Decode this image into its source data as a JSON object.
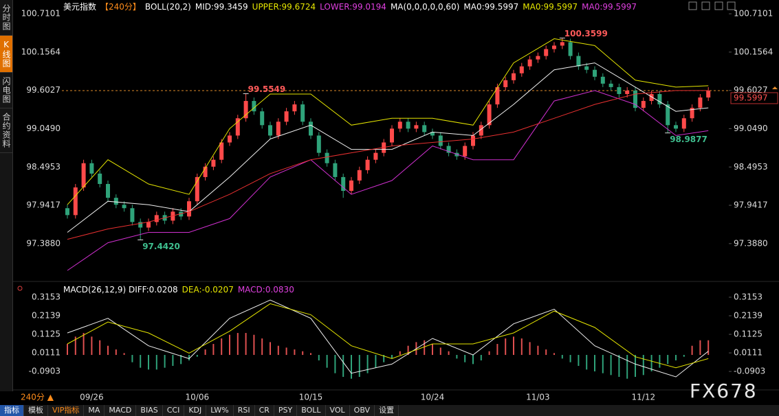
{
  "sidebar": {
    "tabs": [
      "分时图",
      "K线图",
      "闪电图",
      "合约资料"
    ],
    "active": 1
  },
  "toolbar": {
    "items": [
      "指标",
      "模板",
      "VIP指标",
      "MA",
      "MACD",
      "BIAS",
      "CCI",
      "KDJ",
      "LW%",
      "RSI",
      "CR",
      "PSY",
      "BOLL",
      "VOL",
      "OBV",
      "设置"
    ],
    "active": 0,
    "highlight": 2
  },
  "period_button": "240分 ▲",
  "watermark": "FX678",
  "chart_data": [
    {
      "type": "candlestick",
      "header": [
        {
          "text": "美元指数",
          "color": "#ffffff"
        },
        {
          "text": "【240分】",
          "color": "#ff8c1a"
        },
        {
          "text": "BOLL(20,2)",
          "color": "#ffffff"
        },
        {
          "text": "MID:99.3459",
          "color": "#ffffff"
        },
        {
          "text": "UPPER:99.6724",
          "color": "#e6e600"
        },
        {
          "text": "LOWER:99.0194",
          "color": "#e040e0"
        },
        {
          "text": "MA(0,0,0,0,0,60)",
          "color": "#ffffff"
        },
        {
          "text": "MA0:99.5997",
          "color": "#ffffff"
        },
        {
          "text": "MA0:99.5997",
          "color": "#e6e600"
        },
        {
          "text": "MA0:99.5997",
          "color": "#e040e0"
        }
      ],
      "categories": [
        null,
        null,
        null,
        "09/26",
        null,
        null,
        null,
        null,
        null,
        null,
        null,
        null,
        null,
        null,
        null,
        null,
        "10/06",
        null,
        null,
        null,
        null,
        null,
        null,
        null,
        null,
        null,
        null,
        null,
        null,
        null,
        "10/15",
        null,
        null,
        null,
        null,
        null,
        null,
        null,
        null,
        null,
        null,
        null,
        null,
        null,
        null,
        "10/24",
        null,
        null,
        null,
        null,
        null,
        null,
        null,
        null,
        null,
        null,
        null,
        null,
        "11/03",
        null,
        null,
        null,
        null,
        null,
        null,
        null,
        null,
        null,
        null,
        null,
        null,
        "11/12",
        null,
        null,
        null,
        null,
        null,
        null,
        null,
        null
      ],
      "candles": [
        [
          97.9,
          97.95,
          97.75,
          97.8
        ],
        [
          97.8,
          98.25,
          97.75,
          98.2
        ],
        [
          98.2,
          98.6,
          98.15,
          98.55
        ],
        [
          98.55,
          98.6,
          98.35,
          98.4
        ],
        [
          98.4,
          98.45,
          98.2,
          98.25
        ],
        [
          98.25,
          98.3,
          98.0,
          98.05
        ],
        [
          98.05,
          98.1,
          97.9,
          97.95
        ],
        [
          97.95,
          98.0,
          97.85,
          97.9
        ],
        [
          97.9,
          97.95,
          97.65,
          97.7
        ],
        [
          97.7,
          97.75,
          97.442,
          97.62
        ],
        [
          97.62,
          97.75,
          97.57,
          97.7
        ],
        [
          97.7,
          97.85,
          97.65,
          97.8
        ],
        [
          97.8,
          97.85,
          97.67,
          97.72
        ],
        [
          97.72,
          97.9,
          97.67,
          97.85
        ],
        [
          97.85,
          97.9,
          97.73,
          97.78
        ],
        [
          97.78,
          98.05,
          97.73,
          98.0
        ],
        [
          98.0,
          98.4,
          97.95,
          98.35
        ],
        [
          98.35,
          98.55,
          98.3,
          98.5
        ],
        [
          98.5,
          98.65,
          98.45,
          98.6
        ],
        [
          98.6,
          98.9,
          98.55,
          98.85
        ],
        [
          98.85,
          99.0,
          98.8,
          98.95
        ],
        [
          98.95,
          99.25,
          98.9,
          99.2
        ],
        [
          99.2,
          99.5549,
          99.15,
          99.45
        ],
        [
          99.45,
          99.5,
          99.25,
          99.3
        ],
        [
          99.3,
          99.35,
          99.05,
          99.1
        ],
        [
          99.1,
          99.15,
          98.9,
          98.95
        ],
        [
          98.95,
          99.2,
          98.9,
          99.15
        ],
        [
          99.15,
          99.35,
          99.1,
          99.3
        ],
        [
          99.3,
          99.45,
          99.25,
          99.4
        ],
        [
          99.4,
          99.45,
          99.1,
          99.15
        ],
        [
          99.15,
          99.2,
          98.9,
          98.95
        ],
        [
          98.95,
          99.0,
          98.65,
          98.7
        ],
        [
          98.7,
          98.75,
          98.5,
          98.55
        ],
        [
          98.55,
          98.6,
          98.3,
          98.35
        ],
        [
          98.35,
          98.4,
          98.05,
          98.15
        ],
        [
          98.15,
          98.35,
          98.1,
          98.3
        ],
        [
          98.3,
          98.5,
          98.25,
          98.45
        ],
        [
          98.45,
          98.65,
          98.4,
          98.6
        ],
        [
          98.6,
          98.75,
          98.55,
          98.7
        ],
        [
          98.7,
          98.9,
          98.65,
          98.85
        ],
        [
          98.85,
          99.1,
          98.8,
          99.05
        ],
        [
          99.05,
          99.2,
          99.0,
          99.15
        ],
        [
          99.15,
          99.2,
          99.0,
          99.05
        ],
        [
          99.05,
          99.15,
          99.0,
          99.1
        ],
        [
          99.1,
          99.15,
          98.95,
          99.0
        ],
        [
          99.0,
          99.05,
          98.9,
          98.95
        ],
        [
          98.95,
          99.0,
          98.75,
          98.8
        ],
        [
          98.8,
          98.85,
          98.65,
          98.7
        ],
        [
          98.7,
          98.75,
          98.6,
          98.65
        ],
        [
          98.65,
          98.85,
          98.6,
          98.8
        ],
        [
          98.8,
          99.0,
          98.75,
          98.95
        ],
        [
          98.95,
          99.15,
          98.9,
          99.1
        ],
        [
          99.1,
          99.45,
          99.05,
          99.4
        ],
        [
          99.4,
          99.7,
          99.35,
          99.65
        ],
        [
          99.65,
          99.8,
          99.6,
          99.75
        ],
        [
          99.75,
          99.9,
          99.7,
          99.85
        ],
        [
          99.85,
          100.0,
          99.8,
          99.95
        ],
        [
          99.95,
          100.1,
          99.9,
          100.05
        ],
        [
          100.05,
          100.15,
          100.0,
          100.1
        ],
        [
          100.1,
          100.25,
          100.05,
          100.2
        ],
        [
          100.2,
          100.3,
          100.15,
          100.25
        ],
        [
          100.25,
          100.3599,
          100.2,
          100.3
        ],
        [
          100.3,
          100.35,
          100.05,
          100.1
        ],
        [
          100.1,
          100.15,
          99.9,
          99.95
        ],
        [
          99.95,
          100.0,
          99.85,
          99.9
        ],
        [
          99.9,
          99.95,
          99.75,
          99.8
        ],
        [
          99.8,
          99.85,
          99.65,
          99.7
        ],
        [
          99.7,
          99.75,
          99.6,
          99.65
        ],
        [
          99.65,
          99.7,
          99.5,
          99.55
        ],
        [
          99.55,
          99.65,
          99.5,
          99.6
        ],
        [
          99.6,
          99.65,
          99.3,
          99.35
        ],
        [
          99.35,
          99.5,
          99.3,
          99.45
        ],
        [
          99.45,
          99.6,
          99.4,
          99.55
        ],
        [
          99.55,
          99.6,
          99.35,
          99.4
        ],
        [
          99.4,
          99.45,
          98.9877,
          99.1
        ],
        [
          99.1,
          99.15,
          99.0,
          99.05
        ],
        [
          99.05,
          99.25,
          99.0,
          99.2
        ],
        [
          99.2,
          99.4,
          99.15,
          99.35
        ],
        [
          99.35,
          99.55,
          99.3,
          99.5
        ],
        [
          99.5,
          99.65,
          99.45,
          99.6
        ]
      ],
      "up_color": "#ff4a4a",
      "down_color": "#2fa37a",
      "ylim": [
        96.94,
        100.83
      ],
      "yticks": [
        {
          "value": 97.388,
          "label": "97.3880"
        },
        97.9417,
        98.4953,
        {
          "value": 99.049,
          "label": "99.0490"
        },
        99.6027,
        100.1564,
        100.7101
      ],
      "lines": [
        {
          "color": "#e6e600",
          "x": [
            0,
            5,
            10,
            15,
            20,
            25,
            30,
            35,
            40,
            45,
            50,
            55,
            60,
            65,
            70,
            75,
            79
          ],
          "values": [
            97.95,
            98.6,
            98.25,
            98.1,
            99.05,
            99.55,
            99.55,
            99.1,
            99.2,
            99.2,
            99.1,
            100.0,
            100.35,
            100.25,
            99.75,
            99.65,
            99.67
          ]
        },
        {
          "color": "#f0f0f0",
          "x": [
            0,
            5,
            10,
            15,
            20,
            25,
            30,
            35,
            40,
            45,
            50,
            55,
            60,
            65,
            70,
            75,
            79
          ],
          "values": [
            97.55,
            98.0,
            97.95,
            97.85,
            98.35,
            98.9,
            99.1,
            98.75,
            98.75,
            99.0,
            98.95,
            99.4,
            99.9,
            100.0,
            99.65,
            99.3,
            99.35
          ]
        },
        {
          "color": "#d030d0",
          "x": [
            0,
            5,
            10,
            15,
            20,
            25,
            30,
            35,
            40,
            45,
            50,
            55,
            60,
            65,
            70,
            75,
            79
          ],
          "values": [
            97.0,
            97.4,
            97.55,
            97.55,
            97.75,
            98.35,
            98.6,
            98.1,
            98.3,
            98.8,
            98.6,
            98.6,
            99.45,
            99.6,
            99.4,
            98.95,
            99.02
          ]
        },
        {
          "color": "#e83030",
          "x": [
            0,
            5,
            10,
            15,
            20,
            25,
            30,
            35,
            40,
            45,
            50,
            55,
            60,
            65,
            70,
            75,
            79
          ],
          "values": [
            97.45,
            97.6,
            97.7,
            97.85,
            98.1,
            98.4,
            98.6,
            98.7,
            98.8,
            98.85,
            98.9,
            99.0,
            99.2,
            99.4,
            99.55,
            99.6,
            99.6
          ]
        }
      ],
      "annotations": [
        {
          "x": 22,
          "y": 99.5549,
          "color": "#ff5a5a",
          "side": "high"
        },
        {
          "x": 61,
          "y": 100.3599,
          "color": "#ff5a5a",
          "side": "high"
        },
        {
          "x": 9,
          "y": 97.442,
          "label": "97.4420",
          "color": "#3fbf8f",
          "side": "low"
        },
        {
          "x": 74,
          "y": 98.9877,
          "color": "#3fbf8f",
          "side": "low"
        }
      ],
      "last_price": 99.5997
    },
    {
      "type": "macd",
      "header": [
        {
          "text": "MACD(26,12,9) DIFF:0.0208",
          "color": "#ffffff"
        },
        {
          "text": "DEA:-0.0207",
          "color": "#e6e600"
        },
        {
          "text": "MACD:0.0830",
          "color": "#e040e0"
        }
      ],
      "ylim": [
        -0.18,
        0.334
      ],
      "yticks": [
        -0.0903,
        0.0111,
        0.1125,
        0.2139,
        0.3153
      ],
      "values": [
        0.06,
        0.1,
        0.12,
        0.1,
        0.08,
        0.05,
        0.03,
        0.01,
        -0.04,
        -0.07,
        -0.08,
        -0.08,
        -0.07,
        -0.06,
        -0.05,
        -0.03,
        -0.01,
        0.03,
        0.06,
        0.09,
        0.11,
        0.12,
        0.12,
        0.11,
        0.09,
        0.07,
        0.05,
        0.04,
        0.03,
        0.02,
        0.01,
        -0.03,
        -0.07,
        -0.1,
        -0.12,
        -0.13,
        -0.12,
        -0.1,
        -0.07,
        -0.04,
        -0.02,
        0.02,
        0.05,
        0.07,
        0.08,
        0.06,
        0.04,
        0.02,
        -0.02,
        -0.04,
        -0.05,
        -0.03,
        0.02,
        0.06,
        0.09,
        0.1,
        0.09,
        0.07,
        0.05,
        0.03,
        0.01,
        -0.02,
        -0.04,
        -0.06,
        -0.08,
        -0.09,
        -0.1,
        -0.11,
        -0.12,
        -0.13,
        -0.12,
        -0.11,
        -0.09,
        -0.07,
        -0.05,
        -0.03,
        -0.01,
        0.05,
        0.08,
        0.08
      ],
      "up_color": "#e05050",
      "down_color": "#2fa37a",
      "lines": [
        {
          "color": "#f0f0f0",
          "x": [
            0,
            5,
            10,
            15,
            20,
            25,
            30,
            35,
            40,
            45,
            50,
            55,
            60,
            65,
            70,
            75,
            79
          ],
          "values": [
            0.12,
            0.2,
            0.05,
            -0.02,
            0.2,
            0.3,
            0.2,
            -0.1,
            -0.05,
            0.09,
            0.0,
            0.17,
            0.25,
            0.05,
            -0.05,
            -0.12,
            0.02
          ]
        },
        {
          "color": "#e6e600",
          "x": [
            0,
            5,
            10,
            15,
            20,
            25,
            30,
            35,
            40,
            45,
            50,
            55,
            60,
            65,
            70,
            75,
            79
          ],
          "values": [
            0.06,
            0.18,
            0.12,
            0.01,
            0.13,
            0.28,
            0.22,
            0.05,
            -0.02,
            0.06,
            0.06,
            0.12,
            0.24,
            0.15,
            -0.01,
            -0.07,
            -0.02
          ]
        }
      ]
    }
  ]
}
